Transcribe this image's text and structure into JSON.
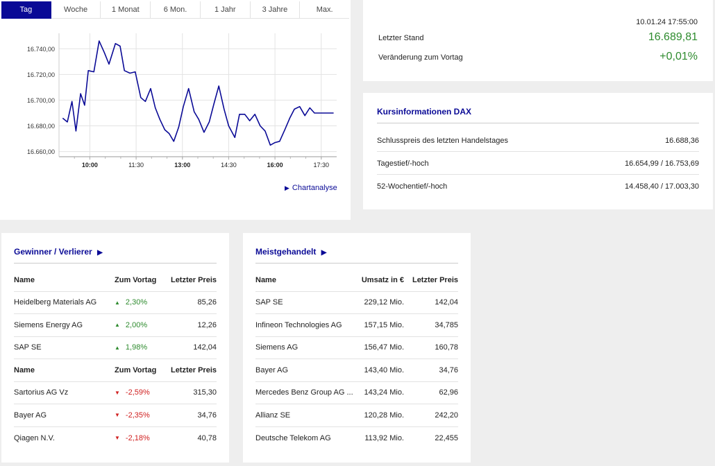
{
  "chart": {
    "tabs": [
      {
        "label": "Tag",
        "active": true
      },
      {
        "label": "Woche",
        "active": false
      },
      {
        "label": "1 Monat",
        "active": false
      },
      {
        "label": "6 Mon.",
        "active": false
      },
      {
        "label": "1 Jahr",
        "active": false
      },
      {
        "label": "3 Jahre",
        "active": false
      },
      {
        "label": "Max.",
        "active": false
      }
    ],
    "link_label": "Chartanalyse",
    "line_color": "#0a0a96",
    "active_tab_color": "#0a0a96"
  },
  "chart_data": {
    "type": "line",
    "x_unit": "time of day (hours)",
    "x_ticks": [
      {
        "value": 10.0,
        "label": "10:00",
        "bold": true
      },
      {
        "value": 11.5,
        "label": "11:30",
        "bold": false
      },
      {
        "value": 13.0,
        "label": "13:00",
        "bold": true
      },
      {
        "value": 14.5,
        "label": "14:30",
        "bold": false
      },
      {
        "value": 16.0,
        "label": "16:00",
        "bold": true
      },
      {
        "value": 17.5,
        "label": "17:30",
        "bold": false
      }
    ],
    "y_ticks": [
      {
        "value": 16660,
        "label": "16.660,00"
      },
      {
        "value": 16680,
        "label": "16.680,00"
      },
      {
        "value": 16700,
        "label": "16.700,00"
      },
      {
        "value": 16720,
        "label": "16.720,00"
      },
      {
        "value": 16740,
        "label": "16.740,00"
      }
    ],
    "xlim": [
      9.0,
      18.0
    ],
    "ylim": [
      16656,
      16752
    ],
    "grid": true,
    "x": [
      9.12,
      9.27,
      9.42,
      9.55,
      9.7,
      9.83,
      9.95,
      10.13,
      10.3,
      10.47,
      10.62,
      10.83,
      10.98,
      11.12,
      11.3,
      11.47,
      11.65,
      11.8,
      11.97,
      12.12,
      12.27,
      12.43,
      12.57,
      12.72,
      12.88,
      13.03,
      13.2,
      13.38,
      13.53,
      13.7,
      13.87,
      14.02,
      14.18,
      14.35,
      14.5,
      14.7,
      14.85,
      15.02,
      15.18,
      15.35,
      15.52,
      15.68,
      15.85,
      16.0,
      16.15,
      16.32,
      16.48,
      16.63,
      16.8,
      16.97,
      17.13,
      17.28,
      17.43,
      17.6,
      17.77,
      17.9
    ],
    "values": [
      16686,
      16683,
      16699,
      16676,
      16705,
      16696,
      16723,
      16722,
      16746,
      16737,
      16728,
      16744,
      16742,
      16723,
      16721,
      16722,
      16702,
      16699,
      16709,
      16694,
      16685,
      16677,
      16674,
      16668,
      16679,
      16695,
      16709,
      16691,
      16685,
      16675,
      16683,
      16697,
      16711,
      16693,
      16680,
      16671,
      16689,
      16689,
      16684,
      16689,
      16680,
      16676,
      16665,
      16667,
      16668,
      16677,
      16686,
      16693,
      16695,
      16688,
      16694,
      16690,
      16690,
      16690,
      16690,
      16690
    ]
  },
  "quote": {
    "timestamp": "10.01.24 17:55:00",
    "last_label": "Letzter Stand",
    "last_value": "16.689,81",
    "change_label": "Veränderung zum Vortag",
    "change_value": "+0,01%",
    "value_color": "#2e8b2e"
  },
  "kurs": {
    "title": "Kursinformationen DAX",
    "rows": [
      {
        "label": "Schlusspreis des letzten Handelstages",
        "value": "16.688,36"
      },
      {
        "label": "Tagestief/-hoch",
        "value": "16.654,99 / 16.753,69"
      },
      {
        "label": "52-Wochentief/-hoch",
        "value": "14.458,40 / 17.003,30"
      }
    ]
  },
  "gewinner": {
    "title": "Gewinner / Verlierer",
    "title_arrow": "▶",
    "header": {
      "name": "Name",
      "change": "Zum Vortag",
      "price": "Letzter Preis"
    },
    "winners": [
      {
        "name": "Heidelberg Materials AG",
        "change": "2,30%",
        "price": "85,26"
      },
      {
        "name": "Siemens Energy AG",
        "change": "2,00%",
        "price": "12,26"
      },
      {
        "name": "SAP SE",
        "change": "1,98%",
        "price": "142,04"
      }
    ],
    "losers": [
      {
        "name": "Sartorius AG Vz",
        "change": "-2,59%",
        "price": "315,30"
      },
      {
        "name": "Bayer AG",
        "change": "-2,35%",
        "price": "34,76"
      },
      {
        "name": "Qiagen N.V.",
        "change": "-2,18%",
        "price": "40,78"
      }
    ],
    "up_color": "#2e8b2e",
    "down_color": "#d02020"
  },
  "meist": {
    "title": "Meistgehandelt",
    "title_arrow": "▶",
    "header": {
      "name": "Name",
      "volume": "Umsatz in €",
      "price": "Letzter Preis"
    },
    "rows": [
      {
        "name": "SAP SE",
        "volume": "229,12 Mio.",
        "price": "142,04"
      },
      {
        "name": "Infineon Technologies AG",
        "volume": "157,15 Mio.",
        "price": "34,785"
      },
      {
        "name": "Siemens AG",
        "volume": "156,47 Mio.",
        "price": "160,78"
      },
      {
        "name": "Bayer AG",
        "volume": "143,40 Mio.",
        "price": "34,76"
      },
      {
        "name": "Mercedes Benz Group AG ...",
        "volume": "143,24 Mio.",
        "price": "62,96"
      },
      {
        "name": "Allianz SE",
        "volume": "120,28 Mio.",
        "price": "242,20"
      },
      {
        "name": "Deutsche Telekom AG",
        "volume": "113,92 Mio.",
        "price": "22,455"
      }
    ]
  }
}
